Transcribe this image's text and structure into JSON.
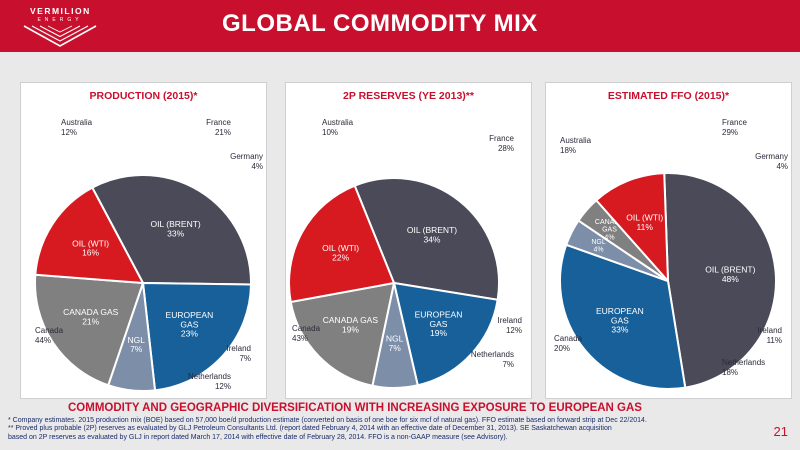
{
  "header": {
    "logo_name": "VERMILION",
    "logo_sub": "ENERGY",
    "title": "GLOBAL COMMODITY MIX"
  },
  "colors": {
    "oil_brent": "#4a4a58",
    "oil_wti": "#d71920",
    "canada_gas": "#808080",
    "european_gas": "#17609a",
    "ngl": "#7c8ea8",
    "accent": "#c8102e"
  },
  "chart_data": [
    {
      "type": "pie",
      "title": "PRODUCTION (2015)*",
      "slices": [
        {
          "label": "OIL (BRENT)",
          "value": 33,
          "display": "33%"
        },
        {
          "label": "EUROPEAN GAS",
          "value": 23,
          "display": "23%"
        },
        {
          "label": "NGL",
          "value": 7,
          "display": "7%"
        },
        {
          "label": "CANADA GAS",
          "value": 21,
          "display": "21%"
        },
        {
          "label": "OIL (WTI)",
          "value": 16,
          "display": "16%"
        }
      ],
      "annotations": [
        {
          "label": "Australia",
          "value": "12%"
        },
        {
          "label": "France",
          "value": "21%"
        },
        {
          "label": "Germany",
          "value": "4%"
        },
        {
          "label": "Ireland",
          "value": "7%"
        },
        {
          "label": "Netherlands",
          "value": "12%"
        },
        {
          "label": "Canada",
          "value": "44%"
        }
      ]
    },
    {
      "type": "pie",
      "title": "2P RESERVES (YE 2013)**",
      "slices": [
        {
          "label": "OIL (BRENT)",
          "value": 34,
          "display": "34%"
        },
        {
          "label": "EUROPEAN GAS",
          "value": 19,
          "display": "19%"
        },
        {
          "label": "NGL",
          "value": 7,
          "display": "7%"
        },
        {
          "label": "CANADA GAS",
          "value": 19,
          "display": "19%"
        },
        {
          "label": "OIL (WTI)",
          "value": 22,
          "display": "22%"
        }
      ],
      "annotations": [
        {
          "label": "Australia",
          "value": "10%"
        },
        {
          "label": "France",
          "value": "28%"
        },
        {
          "label": "Ireland",
          "value": "12%"
        },
        {
          "label": "Netherlands",
          "value": "7%"
        },
        {
          "label": "Canada",
          "value": "43%"
        }
      ]
    },
    {
      "type": "pie",
      "title": "ESTIMATED FFO (2015)*",
      "slices": [
        {
          "label": "OIL (BRENT)",
          "value": 48,
          "display": "48%"
        },
        {
          "label": "EUROPEAN GAS",
          "value": 33,
          "display": "33%"
        },
        {
          "label": "NGL",
          "value": 4,
          "display": "4%"
        },
        {
          "label": "CANADA GAS",
          "value": 4,
          "display": "4%"
        },
        {
          "label": "OIL (WTI)",
          "value": 11,
          "display": "11%"
        }
      ],
      "annotations": [
        {
          "label": "Australia",
          "value": "18%"
        },
        {
          "label": "France",
          "value": "29%"
        },
        {
          "label": "Germany",
          "value": "4%"
        },
        {
          "label": "Ireland",
          "value": "11%"
        },
        {
          "label": "Netherlands",
          "value": "18%"
        },
        {
          "label": "Canada",
          "value": "20%"
        }
      ]
    }
  ],
  "footer": {
    "headline": "COMMODITY AND GEOGRAPHIC DIVERSIFICATION WITH INCREASING EXPOSURE TO EUROPEAN GAS",
    "note1": "*   Company estimates.  2015 production mix (BOE) based on 57,000 boe/d production estimate (converted on basis of one boe for six mcf of natural gas). FFO estimate based on forward strip at Dec 22/2014.",
    "note2": "** Proved plus probable (2P) reserves as evaluated by GLJ Petroleum Consultants Ltd. (report dated February 4, 2014 with an effective date of December 31, 2013).  SE Saskatchewan acquisition",
    "note3": "    based on 2P reserves as evaluated by GLJ in report dated March 17, 2014 with effective date of February 28, 2014. FFO is a non-GAAP measure (see Advisory).",
    "page": "21"
  }
}
